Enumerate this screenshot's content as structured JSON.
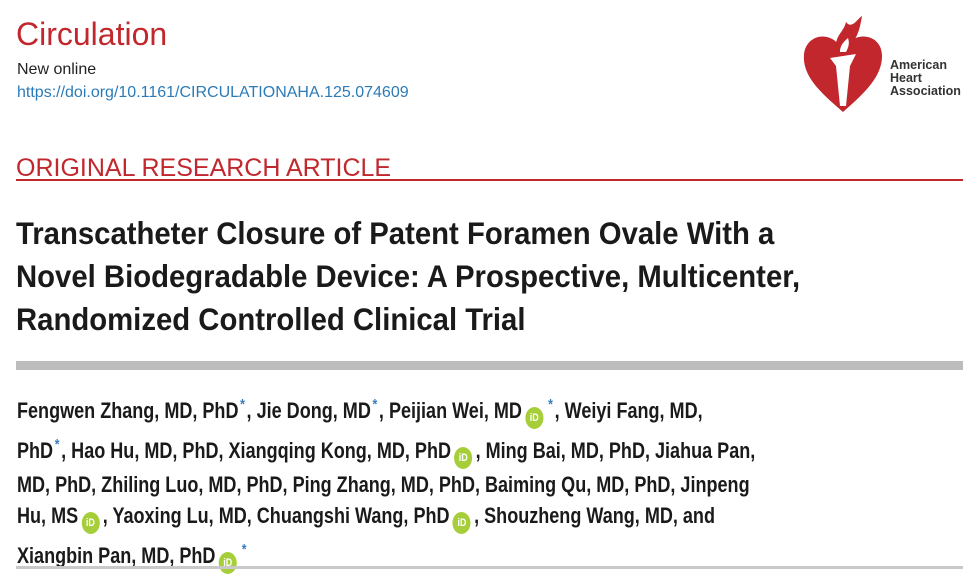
{
  "journal": "Circulation",
  "status": "New online",
  "doi": "https://doi.org/10.1161/CIRCULATIONAHA.125.074609",
  "logo": {
    "text_lines": [
      "American",
      "Heart",
      "Association"
    ],
    "color": "#c1272d"
  },
  "article_type": "ORIGINAL RESEARCH ARTICLE",
  "title_lines": [
    "Transcatheter Closure of Patent Foramen Ovale With a",
    "Novel Biodegradable Device: A Prospective, Multicenter,",
    "Randomized Controlled Clinical Trial"
  ],
  "orcid_label": "iD",
  "author_lines": [
    [
      {
        "t": "Fengwen Zhang, MD, PhD"
      },
      {
        "star": "*"
      },
      {
        "t": ", Jie Dong, MD"
      },
      {
        "star": "*"
      },
      {
        "t": ", Peijian Wei, MD"
      },
      {
        "orcid": true
      },
      {
        "star": "*"
      },
      {
        "t": ", Weiyi Fang, MD,"
      }
    ],
    [
      {
        "t": "PhD"
      },
      {
        "star": "*"
      },
      {
        "t": ", Hao Hu, MD, PhD, Xiangqing Kong, MD, PhD"
      },
      {
        "orcid": true
      },
      {
        "t": ", Ming Bai, MD, PhD, Jiahua Pan,"
      }
    ],
    [
      {
        "t": "MD, PhD, Zhiling Luo, MD, PhD, Ping Zhang, MD, PhD, Baiming Qu, MD, PhD, Jinpeng"
      }
    ],
    [
      {
        "t": "Hu, MS"
      },
      {
        "orcid": true
      },
      {
        "t": ", Yaoxing Lu, MD, Chuangshi Wang, PhD"
      },
      {
        "orcid": true
      },
      {
        "t": ", Shouzheng Wang, MD, and"
      }
    ],
    [
      {
        "t": "Xiangbin Pan, MD, PhD"
      },
      {
        "orcid": true
      },
      {
        "star": "*"
      }
    ]
  ]
}
